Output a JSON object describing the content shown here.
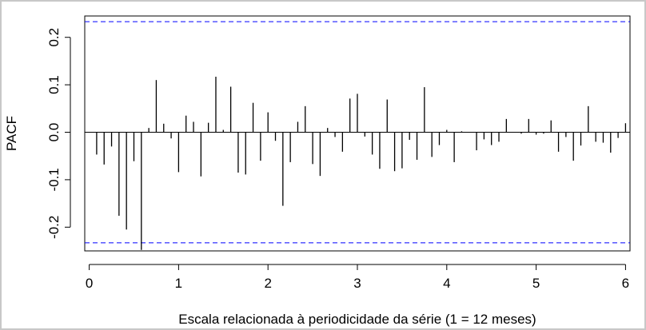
{
  "chart_data": {
    "type": "bar",
    "style": "vertical spikes (ACF/PACF plot)",
    "title": "",
    "xlabel": "Escala relacionada à periodicidade da série (1 = 12 meses)",
    "ylabel": "PACF",
    "xlim": [
      -0.05,
      6.05
    ],
    "ylim": [
      -0.25,
      0.245
    ],
    "x_ticks": [
      0,
      1,
      2,
      3,
      4,
      5,
      6
    ],
    "x_tick_labels": [
      "0",
      "1",
      "2",
      "3",
      "4",
      "5",
      "6"
    ],
    "y_ticks": [
      -0.2,
      -0.1,
      0.0,
      0.1,
      0.2
    ],
    "y_tick_labels": [
      "-0.2",
      "-0.1",
      "0.0",
      "0.1",
      "0.2"
    ],
    "confidence_bounds": [
      0.233,
      -0.233
    ],
    "zero_line": true,
    "grid": false,
    "colors": {
      "spikes": "#000000",
      "bounds": "#0000ff",
      "axes": "#000000"
    },
    "lag_step": 0.0833333,
    "values": [
      -0.047,
      -0.068,
      -0.03,
      -0.176,
      -0.205,
      -0.061,
      -0.248,
      0.009,
      0.11,
      0.018,
      -0.013,
      -0.084,
      0.035,
      0.022,
      -0.093,
      0.02,
      0.117,
      0.005,
      0.096,
      -0.085,
      -0.089,
      0.062,
      -0.06,
      0.042,
      -0.018,
      -0.155,
      -0.063,
      0.022,
      0.055,
      -0.067,
      -0.092,
      0.009,
      -0.01,
      -0.041,
      0.071,
      0.081,
      -0.009,
      -0.047,
      -0.077,
      0.069,
      -0.082,
      -0.076,
      -0.016,
      -0.058,
      0.095,
      -0.052,
      -0.027,
      0.005,
      -0.063,
      0.002,
      0.0,
      -0.038,
      -0.015,
      -0.027,
      -0.02,
      0.028,
      0.0,
      -0.003,
      0.028,
      -0.005,
      -0.003,
      0.025,
      -0.041,
      -0.01,
      -0.06,
      -0.028,
      0.055,
      -0.02,
      -0.022,
      -0.043,
      -0.012,
      0.019
    ]
  }
}
